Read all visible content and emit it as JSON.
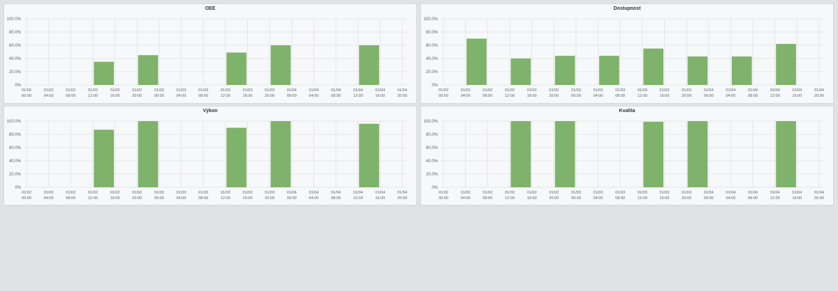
{
  "panels": [
    {
      "title": "OEE"
    },
    {
      "title": "Dostupnost"
    },
    {
      "title": "Výkon"
    },
    {
      "title": "Kvalita"
    }
  ],
  "colors": {
    "bar": "#7fb26a",
    "grid": "#e3e6ea",
    "background": "#dfe3e6",
    "panel": "#f7f8fa"
  },
  "chart_data": [
    {
      "type": "bar",
      "title": "OEE",
      "x": [
        "01/02 00:00",
        "01/02 04:00",
        "01/02 08:00",
        "01/02 12:00",
        "01/02 16:00",
        "01/02 20:00",
        "01/03 00:00",
        "01/03 04:00",
        "01/03 08:00",
        "01/03 12:00",
        "01/03 16:00",
        "01/03 20:00",
        "01/04 00:00",
        "01/04 04:00",
        "01/04 08:00",
        "01/04 12:00",
        "01/04 16:00",
        "01/04 20:00"
      ],
      "bars": [
        {
          "start": "01/02 12:00",
          "end": "01/02 16:00",
          "value": 35
        },
        {
          "start": "01/02 20:00",
          "end": "01/03 00:00",
          "value": 45
        },
        {
          "start": "01/03 12:00",
          "end": "01/03 16:00",
          "value": 49
        },
        {
          "start": "01/03 20:00",
          "end": "01/04 00:00",
          "value": 60
        },
        {
          "start": "01/04 12:00",
          "end": "01/04 16:00",
          "value": 60
        }
      ],
      "y_ticks": [
        "0%",
        "20.0%",
        "40.0%",
        "60.0%",
        "80.0%",
        "100.0%"
      ],
      "ylim": [
        0,
        100
      ],
      "grid": true
    },
    {
      "type": "bar",
      "title": "Dostupnost",
      "x": [
        "01/02 00:00",
        "01/02 04:00",
        "01/02 08:00",
        "01/02 12:00",
        "01/02 16:00",
        "01/02 20:00",
        "01/03 00:00",
        "01/03 04:00",
        "01/03 08:00",
        "01/03 12:00",
        "01/03 16:00",
        "01/03 20:00",
        "01/04 00:00",
        "01/04 04:00",
        "01/04 08:00",
        "01/04 12:00",
        "01/04 16:00",
        "01/04 20:00"
      ],
      "bars": [
        {
          "start": "01/02 04:00",
          "end": "01/02 08:00",
          "value": 70
        },
        {
          "start": "01/02 12:00",
          "end": "01/02 16:00",
          "value": 40
        },
        {
          "start": "01/02 20:00",
          "end": "01/03 00:00",
          "value": 44
        },
        {
          "start": "01/03 04:00",
          "end": "01/03 08:00",
          "value": 44
        },
        {
          "start": "01/03 12:00",
          "end": "01/03 16:00",
          "value": 55
        },
        {
          "start": "01/03 20:00",
          "end": "01/04 00:00",
          "value": 43
        },
        {
          "start": "01/04 04:00",
          "end": "01/04 08:00",
          "value": 43
        },
        {
          "start": "01/04 12:00",
          "end": "01/04 16:00",
          "value": 62
        }
      ],
      "y_ticks": [
        "0%",
        "20.0%",
        "40.0%",
        "60.0%",
        "80.0%",
        "100.0%"
      ],
      "ylim": [
        0,
        100
      ],
      "grid": true
    },
    {
      "type": "bar",
      "title": "Výkon",
      "x": [
        "01/02 00:00",
        "01/02 04:00",
        "01/02 08:00",
        "01/02 12:00",
        "01/02 16:00",
        "01/02 20:00",
        "01/03 00:00",
        "01/03 04:00",
        "01/03 08:00",
        "01/03 12:00",
        "01/03 16:00",
        "01/03 20:00",
        "01/04 00:00",
        "01/04 04:00",
        "01/04 08:00",
        "01/04 12:00",
        "01/04 16:00",
        "01/04 20:00"
      ],
      "bars": [
        {
          "start": "01/02 12:00",
          "end": "01/02 16:00",
          "value": 87
        },
        {
          "start": "01/02 20:00",
          "end": "01/03 00:00",
          "value": 100
        },
        {
          "start": "01/03 12:00",
          "end": "01/03 16:00",
          "value": 90
        },
        {
          "start": "01/03 20:00",
          "end": "01/04 00:00",
          "value": 100
        },
        {
          "start": "01/04 12:00",
          "end": "01/04 16:00",
          "value": 96
        }
      ],
      "y_ticks": [
        "0%",
        "20.0%",
        "40.0%",
        "60.0%",
        "80.0%",
        "100.0%"
      ],
      "ylim": [
        0,
        100
      ],
      "grid": true
    },
    {
      "type": "bar",
      "title": "Kvalita",
      "x": [
        "01/02 00:00",
        "01/02 04:00",
        "01/02 08:00",
        "01/02 12:00",
        "01/02 16:00",
        "01/02 20:00",
        "01/03 00:00",
        "01/03 04:00",
        "01/03 08:00",
        "01/03 12:00",
        "01/03 16:00",
        "01/03 20:00",
        "01/04 00:00",
        "01/04 04:00",
        "01/04 08:00",
        "01/04 12:00",
        "01/04 16:00",
        "01/04 20:00"
      ],
      "bars": [
        {
          "start": "01/02 12:00",
          "end": "01/02 16:00",
          "value": 100
        },
        {
          "start": "01/02 20:00",
          "end": "01/03 00:00",
          "value": 100
        },
        {
          "start": "01/03 12:00",
          "end": "01/03 16:00",
          "value": 99
        },
        {
          "start": "01/03 20:00",
          "end": "01/04 00:00",
          "value": 100
        },
        {
          "start": "01/04 12:00",
          "end": "01/04 16:00",
          "value": 100
        }
      ],
      "y_ticks": [
        "0%",
        "20.0%",
        "40.0%",
        "60.0%",
        "80.0%",
        "100.0%"
      ],
      "ylim": [
        0,
        100
      ],
      "grid": true
    }
  ]
}
